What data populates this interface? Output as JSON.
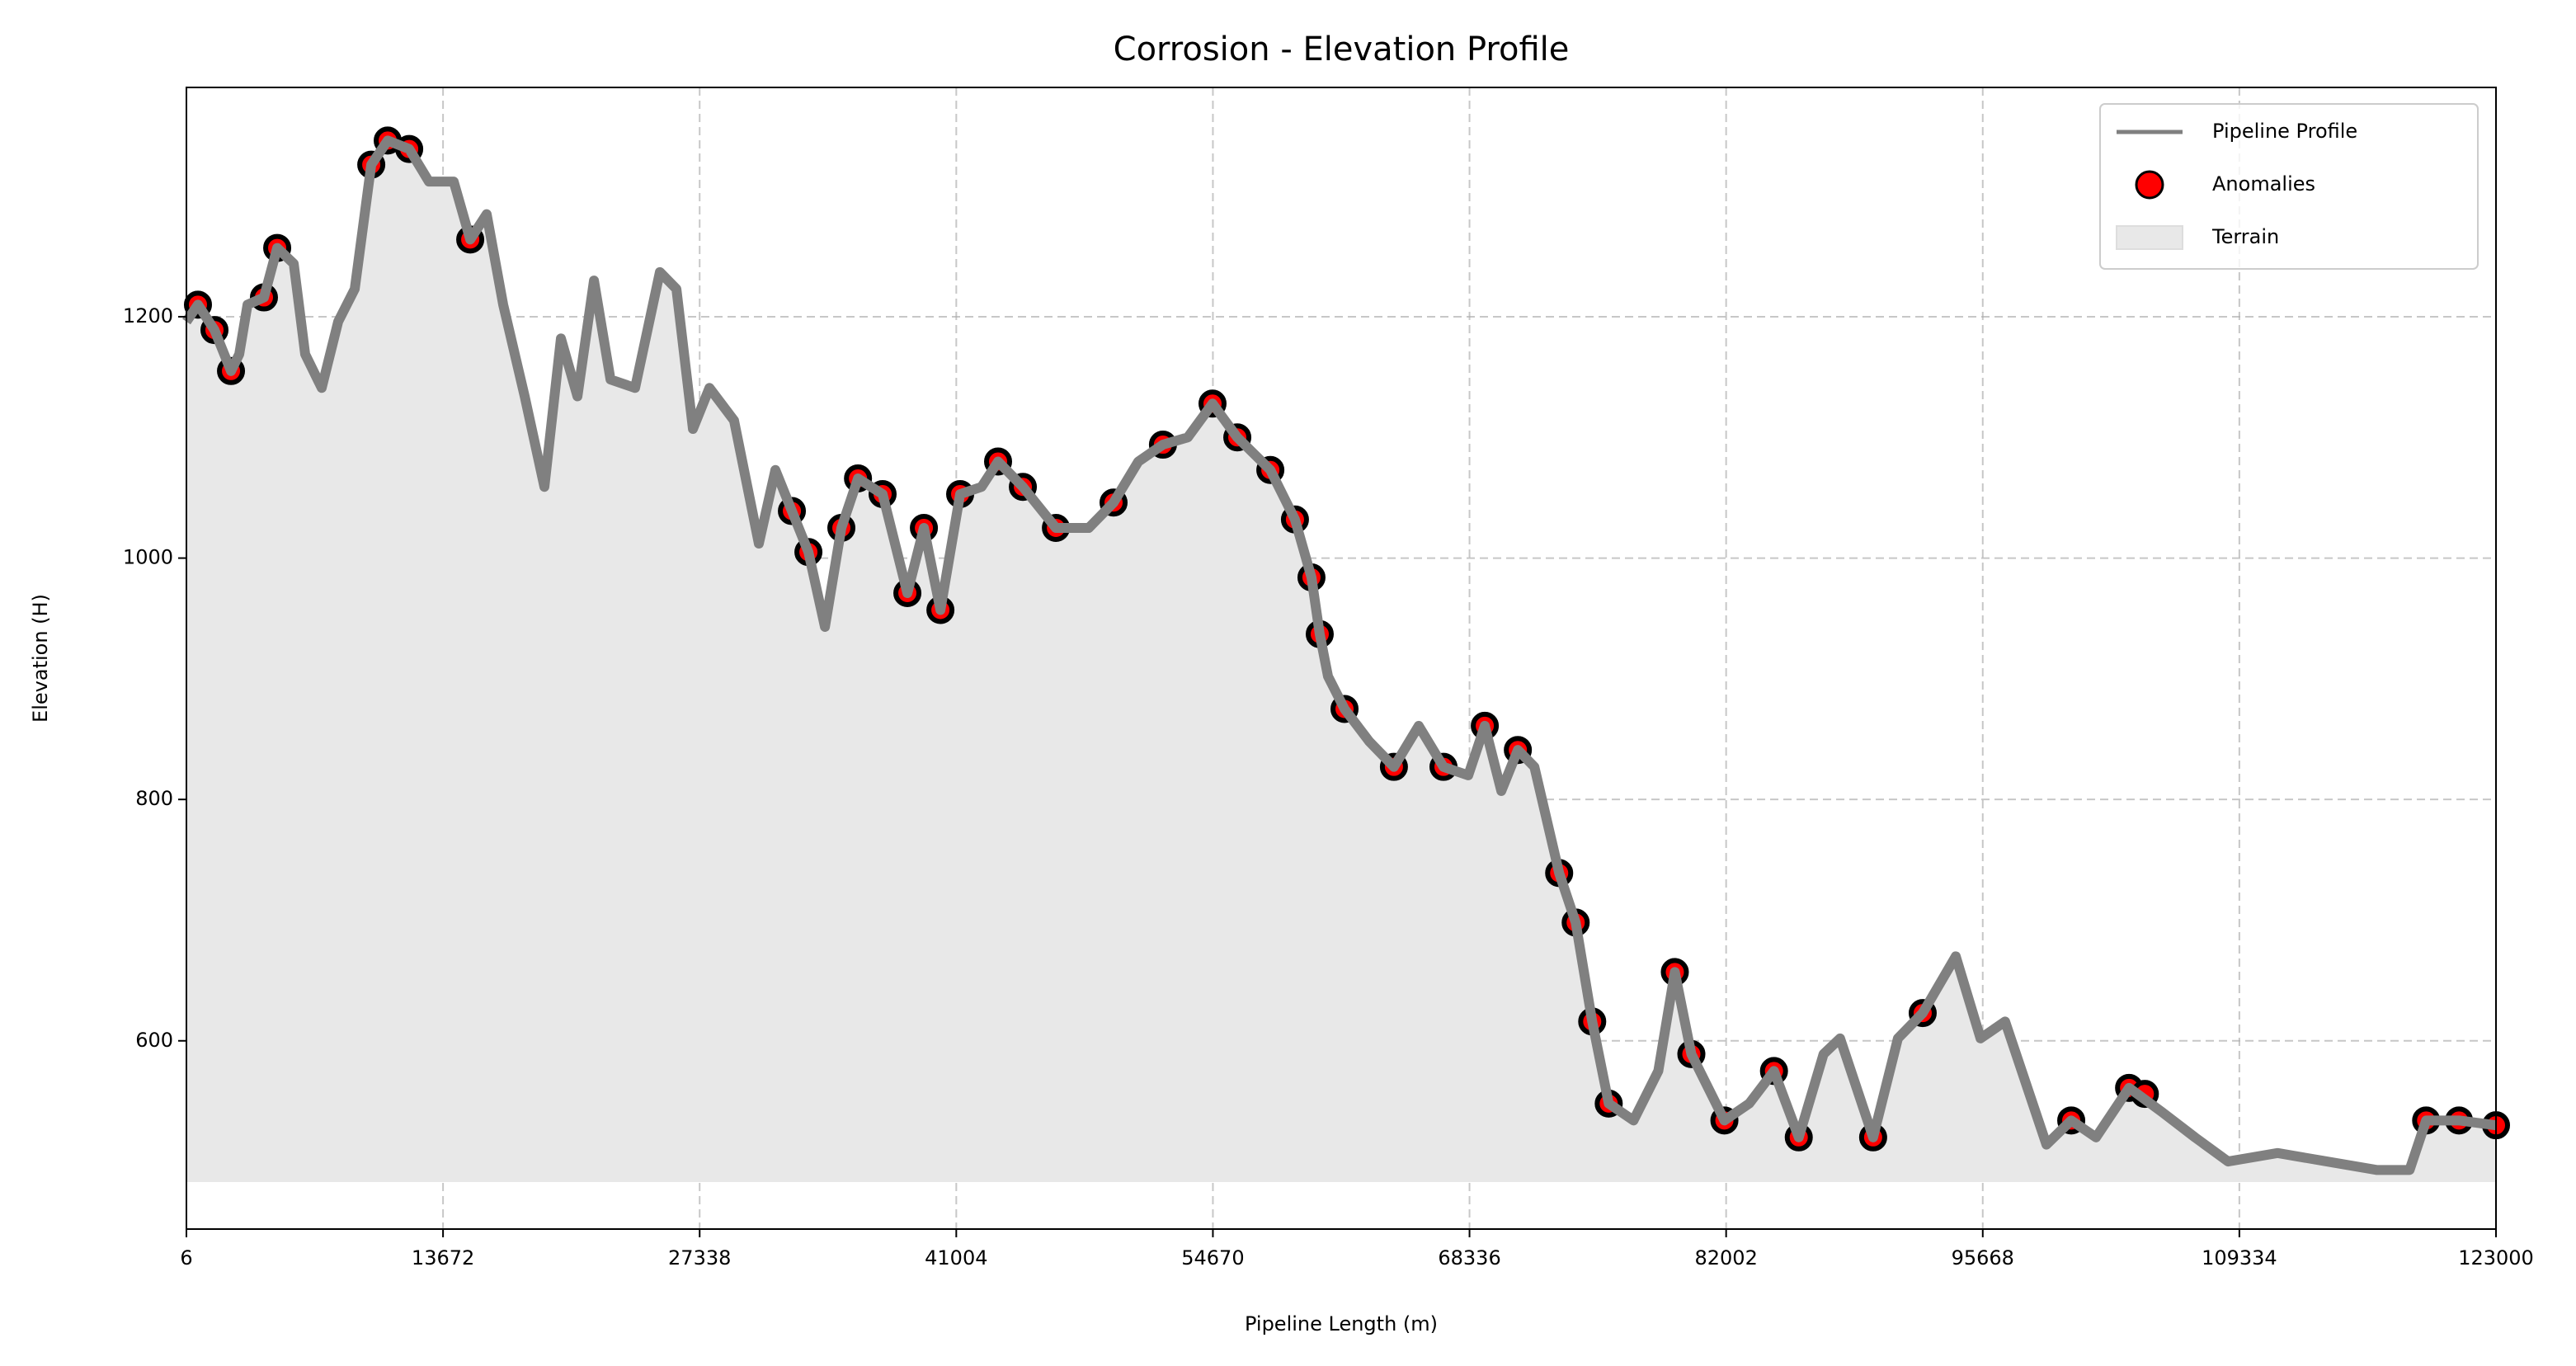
{
  "chart_data": {
    "type": "line",
    "title": "Corrosion - Elevation Profile",
    "x_label": "Pipeline Length (m)",
    "y_label": "Elevation (H)",
    "xlim": [
      6,
      123000
    ],
    "ylim": [
      444,
      1390
    ],
    "xticks": [
      6,
      13672,
      27338,
      41004,
      54670,
      68336,
      82002,
      95668,
      109334,
      123000
    ],
    "yticks": [
      600,
      800,
      1000,
      1200
    ],
    "grid": true,
    "legend": "upper right",
    "series": [
      {
        "name": "Pipeline Profile",
        "type": "line",
        "color": "#808080",
        "x": [
          6,
          620,
          1500,
          2380,
          2820,
          3260,
          4135,
          4840,
          5720,
          6330,
          7210,
          8090,
          8970,
          9850,
          10725,
          11870,
          12920,
          14240,
          15120,
          15995,
          16875,
          18020,
          19070,
          19950,
          20830,
          21710,
          22590,
          23900,
          25220,
          26100,
          26980,
          27860,
          29170,
          30490,
          31370,
          32250,
          33130,
          34010,
          34885,
          35770,
          37080,
          38400,
          39280,
          40160,
          41210,
          42350,
          43230,
          44550,
          46310,
          48060,
          49380,
          50700,
          52010,
          53330,
          54650,
          55970,
          57730,
          59040,
          59920,
          60360,
          60800,
          61680,
          63000,
          64310,
          65630,
          66950,
          68270,
          69150,
          70030,
          70910,
          71790,
          73110,
          73990,
          74870,
          75750,
          77070,
          78390,
          79270,
          80150,
          81910,
          83230,
          84550,
          85870,
          87190,
          88070,
          89830,
          91150,
          92470,
          94230,
          95550,
          96860,
          99060,
          100380,
          101700,
          103460,
          105210,
          106970,
          108730,
          111370,
          114000,
          116640,
          118400,
          119280,
          121030,
          123000
        ],
        "values": [
          1196,
          1210,
          1189,
          1155,
          1169,
          1210,
          1216,
          1257,
          1244,
          1169,
          1141,
          1196,
          1223,
          1326,
          1346,
          1339,
          1312,
          1312,
          1264,
          1285,
          1210,
          1134,
          1059,
          1182,
          1134,
          1230,
          1148,
          1141,
          1237,
          1223,
          1107,
          1141,
          1114,
          1012,
          1073,
          1039,
          1005,
          943,
          1025,
          1066,
          1053,
          971,
          1025,
          957,
          1053,
          1059,
          1080,
          1059,
          1025,
          1025,
          1046,
          1080,
          1094,
          1100,
          1128,
          1100,
          1073,
          1032,
          984,
          937,
          902,
          875,
          848,
          827,
          861,
          827,
          820,
          861,
          807,
          841,
          827,
          739,
          698,
          616,
          548,
          534,
          575,
          657,
          589,
          534,
          548,
          575,
          520,
          589,
          602,
          520,
          602,
          623,
          670,
          602,
          616,
          514,
          534,
          520,
          561,
          541,
          520,
          500,
          507,
          500,
          493,
          493,
          534,
          534,
          530
        ]
      },
      {
        "name": "Anomalies",
        "type": "scatter",
        "color": "#ff0000",
        "edgecolor": "#000000",
        "x": [
          620,
          1500,
          2380,
          4135,
          4840,
          9850,
          10725,
          11870,
          15120,
          32250,
          33130,
          34885,
          35770,
          37080,
          38400,
          39280,
          40160,
          41210,
          43230,
          44550,
          46310,
          49380,
          52010,
          54650,
          55970,
          57730,
          59040,
          59920,
          60360,
          61680,
          64310,
          66950,
          69150,
          70910,
          73110,
          73990,
          74870,
          75750,
          79270,
          80150,
          81910,
          84550,
          85870,
          89830,
          92470,
          100380,
          103460,
          104300,
          119280,
          121030,
          123000
        ],
        "values": [
          1210,
          1189,
          1155,
          1216,
          1257,
          1326,
          1346,
          1339,
          1264,
          1039,
          1005,
          1025,
          1066,
          1053,
          971,
          1025,
          957,
          1053,
          1080,
          1059,
          1025,
          1046,
          1094,
          1128,
          1100,
          1073,
          1032,
          984,
          937,
          875,
          827,
          827,
          861,
          841,
          739,
          698,
          616,
          548,
          657,
          589,
          534,
          575,
          520,
          520,
          623,
          534,
          561,
          556,
          534,
          534,
          530
        ]
      },
      {
        "name": "Terrain",
        "type": "area",
        "color": "#e8e8e8",
        "baseline": 483
      }
    ]
  }
}
